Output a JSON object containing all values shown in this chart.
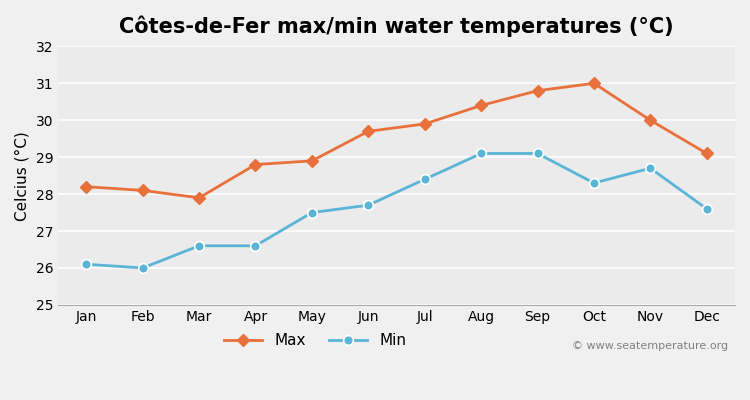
{
  "title": "Côtes-de-Fer max/min water temperatures (°C)",
  "months": [
    "Jan",
    "Feb",
    "Mar",
    "Apr",
    "May",
    "Jun",
    "Jul",
    "Aug",
    "Sep",
    "Oct",
    "Nov",
    "Dec"
  ],
  "max_temps": [
    28.2,
    28.1,
    27.9,
    28.8,
    28.9,
    29.7,
    29.9,
    30.4,
    30.8,
    31.0,
    30.0,
    29.1
  ],
  "min_temps": [
    26.1,
    26.0,
    26.6,
    26.6,
    27.5,
    27.7,
    28.4,
    29.1,
    29.1,
    28.3,
    28.7,
    27.6
  ],
  "max_color": "#e8703a",
  "min_color": "#5ab4d6",
  "bg_color": "#f0f0f0",
  "plot_bg_color": "#ebebeb",
  "ylabel": "Celcius (°C)",
  "ylim": [
    25,
    32
  ],
  "yticks": [
    25,
    26,
    27,
    28,
    29,
    30,
    31,
    32
  ],
  "legend_labels": [
    "Max",
    "Min"
  ],
  "watermark": "© www.seatemperature.org",
  "title_fontsize": 15,
  "label_fontsize": 11,
  "tick_fontsize": 10,
  "watermark_fontsize": 8
}
